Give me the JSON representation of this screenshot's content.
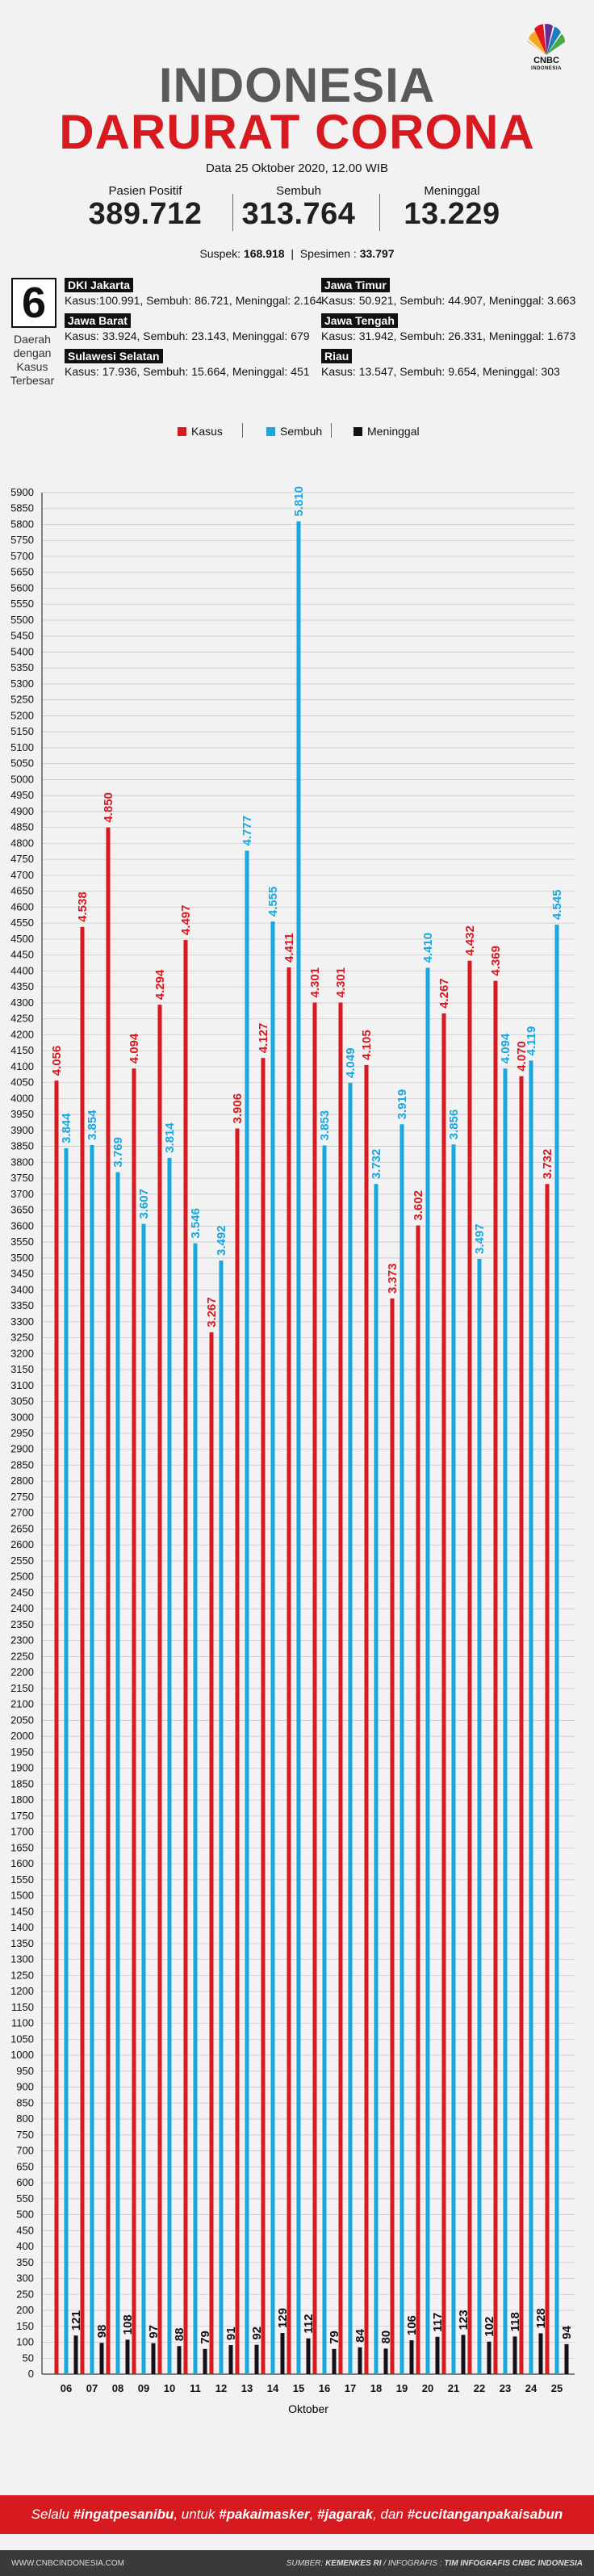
{
  "header": {
    "logo_text": "CNBC",
    "logo_sub": "INDONESIA",
    "title_line1": "INDONESIA",
    "title_line2": "DARURAT CORONA",
    "date": "Data 25 Oktober 2020, 12.00 WIB"
  },
  "stats": [
    {
      "label": "Pasien Positif",
      "value": "389.712"
    },
    {
      "label": "Sembuh",
      "value": "313.764"
    },
    {
      "label": "Meninggal",
      "value": "13.229"
    }
  ],
  "suspek": {
    "label": "Suspek:",
    "value": "168.918",
    "sep": "|",
    "spesimen_label": "Spesimen :",
    "spesimen_value": "33.797"
  },
  "regions_block": {
    "big_number": "6",
    "caption": "Daerah dengan Kasus Terbesar",
    "regions": [
      {
        "name": "DKI Jakarta",
        "stats": "Kasus:100.991, Sembuh: 86.721, Meninggal: 2.164"
      },
      {
        "name": "Jawa Timur",
        "stats": "Kasus: 50.921, Sembuh: 44.907, Meninggal: 3.663"
      },
      {
        "name": "Jawa Barat",
        "stats": "Kasus: 33.924, Sembuh: 23.143, Meninggal: 679"
      },
      {
        "name": "Jawa Tengah",
        "stats": "Kasus: 31.942, Sembuh: 26.331, Meninggal: 1.673"
      },
      {
        "name": "Sulawesi Selatan",
        "stats": "Kasus: 17.936, Sembuh: 15.664, Meninggal: 451"
      },
      {
        "name": "Riau",
        "stats": "Kasus: 13.547, Sembuh: 9.654, Meninggal: 303"
      }
    ]
  },
  "colors": {
    "kasus": "#d71920",
    "sembuh": "#1aa7e0",
    "meninggal": "#111111",
    "title_gray": "#58595b"
  },
  "chart_data": {
    "type": "bar",
    "xlabel": "Oktober",
    "ylabel": "",
    "ylim": [
      0,
      5900
    ],
    "ytick_step": 50,
    "grid": true,
    "legend": "top",
    "categories": [
      "06",
      "07",
      "08",
      "09",
      "10",
      "11",
      "12",
      "13",
      "14",
      "15",
      "16",
      "17",
      "18",
      "19",
      "20",
      "21",
      "22",
      "23",
      "24",
      "25"
    ],
    "series": [
      {
        "name": "Kasus",
        "color": "#d71920",
        "values": [
          4056,
          4538,
          4850,
          4094,
          4294,
          4497,
          3267,
          3906,
          4127,
          4411,
          4301,
          4301,
          4105,
          3373,
          3602,
          4267,
          4432,
          4369,
          4070,
          3732
        ],
        "labels": [
          "4.056",
          "4.538",
          "4.850",
          "4.094",
          "4.294",
          "4.497",
          "3.267",
          "3.906",
          "4.127",
          "4.411",
          "4.301",
          "4.301",
          "4.105",
          "3.373",
          "3.602",
          "4.267",
          "4.432",
          "4.369",
          "4.070",
          "3.732"
        ]
      },
      {
        "name": "Sembuh",
        "color": "#1aa7e0",
        "values": [
          3844,
          3854,
          3769,
          3607,
          3814,
          3546,
          3492,
          4777,
          4555,
          5810,
          3853,
          4049,
          3732,
          3919,
          4410,
          3856,
          3497,
          4094,
          4119,
          4545
        ],
        "labels": [
          "3.844",
          "3.854",
          "3.769",
          "3.607",
          "3.814",
          "3.546",
          "3.492",
          "4.777",
          "4.555",
          "5.810",
          "3.853",
          "4.049",
          "3.732",
          "3.919",
          "4.410",
          "3.856",
          "3.497",
          "4.094",
          "4.119",
          "4.545"
        ]
      },
      {
        "name": "Meninggal",
        "color": "#111111",
        "values": [
          121,
          98,
          108,
          97,
          88,
          79,
          91,
          92,
          129,
          112,
          79,
          84,
          80,
          106,
          117,
          123,
          102,
          118,
          128,
          94
        ],
        "labels": [
          "121",
          "98",
          "108",
          "97",
          "88",
          "79",
          "91",
          "92",
          "129",
          "112",
          "79",
          "84",
          "80",
          "106",
          "117",
          "123",
          "102",
          "118",
          "128",
          "94"
        ]
      }
    ]
  },
  "banner": {
    "text_html": "Selalu <b>#ingatpesanibu</b>, untuk <b>#pakaimasker</b>, <b>#jagarak</b>, dan <b>#cucitanganpakaisabun</b>"
  },
  "footer": {
    "left": "WWW.CNBCINDONESIA.COM",
    "right_prefix": "SUMBER: ",
    "right_source": "KEMENKES RI",
    "right_mid": " / INFOGRAFIS : ",
    "right_team": "TIM INFOGRAFIS CNBC INDONESIA"
  }
}
